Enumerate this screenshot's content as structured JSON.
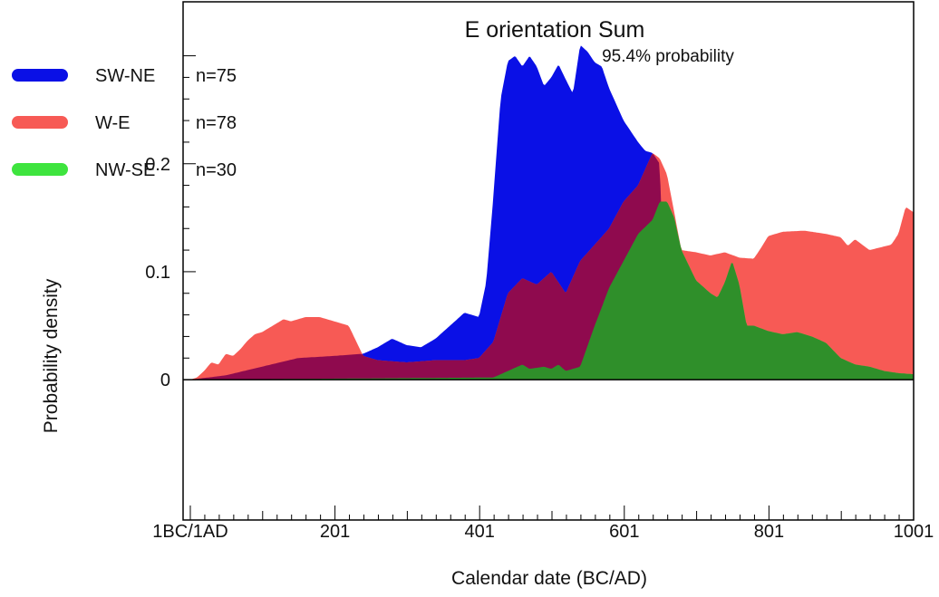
{
  "chart_data": {
    "type": "area",
    "title": "E orientation Sum",
    "subtitle": "95.4% probability",
    "xlabel": "Calendar date (BC/AD)",
    "ylabel": "Probability density",
    "xlim": [
      -9,
      1001
    ],
    "ylim": [
      -0.13,
      0.35
    ],
    "x_ticks": [
      {
        "value": 1,
        "label": "1BC/1AD"
      },
      {
        "value": 201,
        "label": "201"
      },
      {
        "value": 401,
        "label": "401"
      },
      {
        "value": 601,
        "label": "601"
      },
      {
        "value": 801,
        "label": "801"
      },
      {
        "value": 1001,
        "label": "1001"
      }
    ],
    "y_ticks": [
      {
        "value": 0,
        "label": "0"
      },
      {
        "value": 0.1,
        "label": "0.1"
      },
      {
        "value": 0.2,
        "label": "0.2"
      }
    ],
    "legend": [
      {
        "key": "swne",
        "name": "SW-NE",
        "n_label": "n=75",
        "color": "#0a10e6"
      },
      {
        "key": "we",
        "name": "W-E",
        "n_label": "n=78",
        "color": "#f75a55"
      },
      {
        "key": "nwse",
        "name": "NW-SE",
        "n_label": "n=30",
        "color": "#3ee43e"
      }
    ],
    "overlap_colors": {
      "swne_we": "#8f0a4e",
      "we_nwse": "#2f8f2a"
    },
    "series": [
      {
        "name": "SW-NE",
        "color": "#0a10e6",
        "points": [
          [
            1,
            0
          ],
          [
            50,
            0.004
          ],
          [
            100,
            0.012
          ],
          [
            150,
            0.02
          ],
          [
            200,
            0.022
          ],
          [
            240,
            0.024
          ],
          [
            260,
            0.03
          ],
          [
            280,
            0.038
          ],
          [
            300,
            0.032
          ],
          [
            320,
            0.03
          ],
          [
            340,
            0.038
          ],
          [
            360,
            0.05
          ],
          [
            380,
            0.062
          ],
          [
            400,
            0.058
          ],
          [
            410,
            0.09
          ],
          [
            420,
            0.17
          ],
          [
            430,
            0.26
          ],
          [
            440,
            0.295
          ],
          [
            450,
            0.3
          ],
          [
            460,
            0.29
          ],
          [
            470,
            0.3
          ],
          [
            480,
            0.29
          ],
          [
            490,
            0.272
          ],
          [
            500,
            0.28
          ],
          [
            510,
            0.292
          ],
          [
            520,
            0.278
          ],
          [
            530,
            0.265
          ],
          [
            540,
            0.31
          ],
          [
            550,
            0.304
          ],
          [
            560,
            0.294
          ],
          [
            570,
            0.29
          ],
          [
            580,
            0.27
          ],
          [
            590,
            0.255
          ],
          [
            600,
            0.24
          ],
          [
            610,
            0.23
          ],
          [
            620,
            0.22
          ],
          [
            630,
            0.212
          ],
          [
            640,
            0.21
          ],
          [
            650,
            0.2
          ],
          [
            660,
            0
          ],
          [
            1001,
            0
          ]
        ]
      },
      {
        "name": "W-E",
        "color": "#f75a55",
        "points": [
          [
            1,
            0
          ],
          [
            10,
            0.002
          ],
          [
            20,
            0.008
          ],
          [
            30,
            0.016
          ],
          [
            40,
            0.014
          ],
          [
            50,
            0.024
          ],
          [
            60,
            0.022
          ],
          [
            70,
            0.028
          ],
          [
            80,
            0.036
          ],
          [
            90,
            0.042
          ],
          [
            100,
            0.044
          ],
          [
            110,
            0.048
          ],
          [
            120,
            0.052
          ],
          [
            130,
            0.056
          ],
          [
            140,
            0.054
          ],
          [
            160,
            0.058
          ],
          [
            180,
            0.058
          ],
          [
            200,
            0.054
          ],
          [
            220,
            0.05
          ],
          [
            240,
            0.022
          ],
          [
            260,
            0.018
          ],
          [
            300,
            0.016
          ],
          [
            340,
            0.018
          ],
          [
            380,
            0.018
          ],
          [
            400,
            0.02
          ],
          [
            420,
            0.035
          ],
          [
            440,
            0.08
          ],
          [
            460,
            0.094
          ],
          [
            480,
            0.088
          ],
          [
            500,
            0.1
          ],
          [
            520,
            0.08
          ],
          [
            540,
            0.11
          ],
          [
            560,
            0.125
          ],
          [
            580,
            0.14
          ],
          [
            600,
            0.165
          ],
          [
            620,
            0.18
          ],
          [
            640,
            0.21
          ],
          [
            650,
            0.205
          ],
          [
            660,
            0.19
          ],
          [
            680,
            0.12
          ],
          [
            700,
            0.118
          ],
          [
            720,
            0.115
          ],
          [
            740,
            0.118
          ],
          [
            760,
            0.113
          ],
          [
            780,
            0.112
          ],
          [
            790,
            0.122
          ],
          [
            800,
            0.133
          ],
          [
            820,
            0.137
          ],
          [
            850,
            0.138
          ],
          [
            880,
            0.135
          ],
          [
            900,
            0.132
          ],
          [
            910,
            0.124
          ],
          [
            920,
            0.13
          ],
          [
            940,
            0.12
          ],
          [
            970,
            0.125
          ],
          [
            980,
            0.135
          ],
          [
            990,
            0.16
          ],
          [
            1001,
            0.155
          ]
        ]
      },
      {
        "name": "NW-SE",
        "color": "#3ee43e",
        "points": [
          [
            1,
            0
          ],
          [
            420,
            0.002
          ],
          [
            440,
            0.008
          ],
          [
            460,
            0.014
          ],
          [
            470,
            0.01
          ],
          [
            490,
            0.012
          ],
          [
            500,
            0.01
          ],
          [
            510,
            0.014
          ],
          [
            520,
            0.008
          ],
          [
            540,
            0.012
          ],
          [
            560,
            0.05
          ],
          [
            580,
            0.085
          ],
          [
            600,
            0.11
          ],
          [
            620,
            0.135
          ],
          [
            640,
            0.148
          ],
          [
            650,
            0.165
          ],
          [
            660,
            0.165
          ],
          [
            670,
            0.15
          ],
          [
            680,
            0.12
          ],
          [
            700,
            0.092
          ],
          [
            720,
            0.08
          ],
          [
            730,
            0.076
          ],
          [
            740,
            0.09
          ],
          [
            750,
            0.11
          ],
          [
            760,
            0.088
          ],
          [
            770,
            0.05
          ],
          [
            780,
            0.05
          ],
          [
            800,
            0.045
          ],
          [
            820,
            0.042
          ],
          [
            840,
            0.044
          ],
          [
            860,
            0.04
          ],
          [
            880,
            0.034
          ],
          [
            900,
            0.02
          ],
          [
            920,
            0.014
          ],
          [
            940,
            0.012
          ],
          [
            960,
            0.008
          ],
          [
            980,
            0.006
          ],
          [
            1001,
            0.005
          ]
        ]
      }
    ]
  }
}
